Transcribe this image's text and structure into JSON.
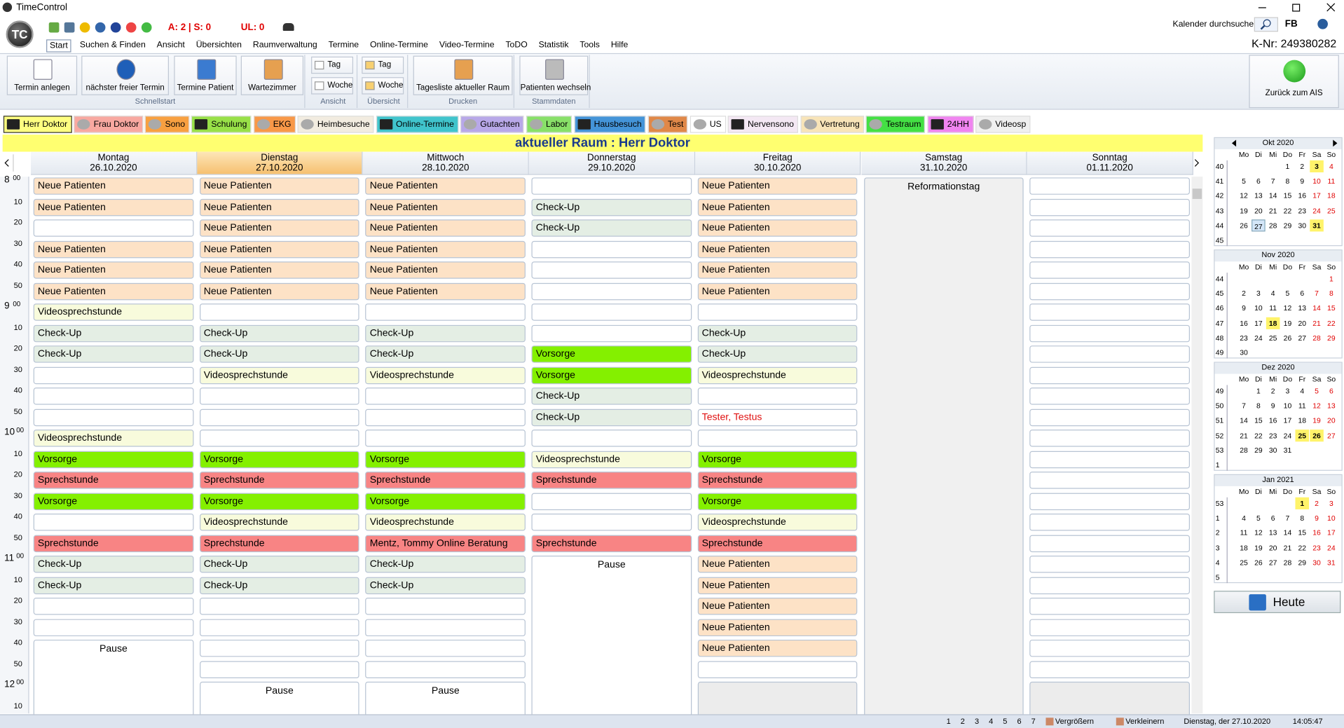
{
  "window": {
    "title": "TimeControl",
    "logo": "TC"
  },
  "toolbar": {
    "status_a": "A: 2 | S: 0",
    "status_ul": "UL: 0",
    "search": "Kalender durchsuchen",
    "fb": "FB"
  },
  "menu": {
    "items": [
      "Start",
      "Suchen & Finden",
      "Ansicht",
      "Übersichten",
      "Raumverwaltung",
      "Termine",
      "Online-Termine",
      "Video-Termine",
      "ToDO",
      "Statistik",
      "Tools",
      "Hilfe"
    ],
    "active": 0,
    "customer_number": "K-Nr: 249380282"
  },
  "ribbon": {
    "groups": [
      {
        "label": "Schnellstart",
        "buttons": [
          "Termin anlegen",
          "nächster freier Termin",
          "Termine Patient",
          "Wartezimmer"
        ]
      },
      {
        "label": "Ansicht",
        "buttons": [
          "Tag",
          "Woche"
        ]
      },
      {
        "label": "Übersicht",
        "buttons": [
          "Tag",
          "Woche"
        ]
      },
      {
        "label": "Drucken",
        "buttons": [
          "Tagesliste aktueller Raum"
        ]
      },
      {
        "label": "Stammdaten",
        "buttons": [
          "Patienten wechseln"
        ]
      }
    ],
    "back_button": "Zurück zum AIS"
  },
  "rooms": {
    "tabs": [
      {
        "name": "Herr Doktor",
        "color": "#ffff80"
      },
      {
        "name": "Frau Doktor",
        "color": "#f8a8a0"
      },
      {
        "name": "Sono",
        "color": "#f8a040"
      },
      {
        "name": "Schulung",
        "color": "#98e048"
      },
      {
        "name": "EKG",
        "color": "#f89848"
      },
      {
        "name": "Heimbesuche",
        "color": "#f2ece0"
      },
      {
        "name": "Online-Termine",
        "color": "#40c4cc"
      },
      {
        "name": "Gutachten",
        "color": "#b8a8e8"
      },
      {
        "name": "Labor",
        "color": "#88e068"
      },
      {
        "name": "Hausbesuch",
        "color": "#4494d8"
      },
      {
        "name": "Test",
        "color": "#e08848"
      },
      {
        "name": "US",
        "color": "#ffffff"
      },
      {
        "name": "Nervensono",
        "color": "#f4e8f4"
      },
      {
        "name": "Vertretung",
        "color": "#f8e4b8"
      },
      {
        "name": "Testraum",
        "color": "#44e044"
      },
      {
        "name": "24HH",
        "color": "#f084f0"
      },
      {
        "name": "Videosp",
        "color": "#f0f0f0"
      }
    ],
    "active": 0,
    "banner": "aktueller Raum : Herr Doktor"
  },
  "schedule": {
    "slot_colors": {
      "Neue Patienten": "#fde2c6",
      "Check-Up": "#e4eee4",
      "Videosprechstunde": "#f8fbdc",
      "Vorsorge": "#84f000",
      "Sprechstunde": "#f88484"
    },
    "times": [
      {
        "hour": "8",
        "minute": "00"
      },
      {
        "minute": "10"
      },
      {
        "minute": "20"
      },
      {
        "minute": "30"
      },
      {
        "minute": "40"
      },
      {
        "minute": "50"
      },
      {
        "hour": "9",
        "minute": "00"
      },
      {
        "minute": "10"
      },
      {
        "minute": "20"
      },
      {
        "minute": "30"
      },
      {
        "minute": "40"
      },
      {
        "minute": "50"
      },
      {
        "hour": "10",
        "minute": "00"
      },
      {
        "minute": "10"
      },
      {
        "minute": "20"
      },
      {
        "minute": "30"
      },
      {
        "minute": "40"
      },
      {
        "minute": "50"
      },
      {
        "hour": "11",
        "minute": "00"
      },
      {
        "minute": "10"
      },
      {
        "minute": "20"
      },
      {
        "minute": "30"
      },
      {
        "minute": "40"
      },
      {
        "minute": "50"
      },
      {
        "hour": "12",
        "minute": "00"
      },
      {
        "minute": "10"
      }
    ],
    "days": [
      {
        "name": "Montag",
        "date": "26.10.2020",
        "slots": [
          "Neue Patienten",
          "Neue Patienten",
          null,
          "Neue Patienten",
          "Neue Patienten",
          "Neue Patienten",
          "Videosprechstunde",
          "Check-Up",
          "Check-Up",
          null,
          null,
          null,
          "Videosprechstunde",
          "Vorsorge",
          "Sprechstunde",
          "Vorsorge",
          null,
          "Sprechstunde",
          "Check-Up",
          "Check-Up",
          null,
          null,
          {
            "text": "Pause",
            "block": true
          }
        ]
      },
      {
        "name": "Dienstag",
        "date": "27.10.2020",
        "today": true,
        "slots": [
          "Neue Patienten",
          "Neue Patienten",
          "Neue Patienten",
          "Neue Patienten",
          "Neue Patienten",
          "Neue Patienten",
          null,
          "Check-Up",
          "Check-Up",
          "Videosprechstunde",
          null,
          null,
          null,
          "Vorsorge",
          "Sprechstunde",
          "Vorsorge",
          "Videosprechstunde",
          "Sprechstunde",
          "Check-Up",
          "Check-Up",
          null,
          null,
          null,
          null,
          {
            "text": "Pause",
            "block": true
          }
        ]
      },
      {
        "name": "Mittwoch",
        "date": "28.10.2020",
        "slots": [
          "Neue Patienten",
          "Neue Patienten",
          "Neue Patienten",
          "Neue Patienten",
          "Neue Patienten",
          "Neue Patienten",
          null,
          "Check-Up",
          "Check-Up",
          "Videosprechstunde",
          null,
          null,
          null,
          "Vorsorge",
          "Sprechstunde",
          "Vorsorge",
          "Videosprechstunde",
          {
            "text": "Mentz, Tommy Online  Beratung",
            "color": "#f88484"
          },
          "Check-Up",
          "Check-Up",
          null,
          null,
          null,
          null,
          {
            "text": "Pause",
            "block": true
          }
        ]
      },
      {
        "name": "Donnerstag",
        "date": "29.10.2020",
        "slots": [
          null,
          "Check-Up",
          "Check-Up",
          null,
          null,
          null,
          null,
          null,
          "Vorsorge",
          "Vorsorge",
          "Check-Up",
          "Check-Up",
          null,
          "Videosprechstunde",
          "Sprechstunde",
          null,
          null,
          "Sprechstunde",
          {
            "text": "Pause",
            "block": true
          }
        ]
      },
      {
        "name": "Freitag",
        "date": "30.10.2020",
        "slots": [
          "Neue Patienten",
          "Neue Patienten",
          "Neue Patienten",
          "Neue Patienten",
          "Neue Patienten",
          "Neue Patienten",
          null,
          "Check-Up",
          "Check-Up",
          "Videosprechstunde",
          null,
          {
            "text": "Tester, Testus",
            "text_color": "#e01010"
          },
          null,
          "Vorsorge",
          "Sprechstunde",
          "Vorsorge",
          "Videosprechstunde",
          "Sprechstunde",
          "Neue Patienten",
          "Neue Patienten",
          "Neue Patienten",
          "Neue Patienten",
          "Neue Patienten",
          null,
          {
            "block": true,
            "color": "#ececec"
          }
        ]
      },
      {
        "name": "Samstag",
        "date": "31.10.2020",
        "slots": [
          {
            "text": "Reformationstag",
            "block": true,
            "color": "#f0f0f0"
          }
        ]
      },
      {
        "name": "Sonntag",
        "date": "01.11.2020",
        "slots": [
          null,
          null,
          null,
          null,
          null,
          null,
          null,
          null,
          null,
          null,
          null,
          null,
          null,
          null,
          null,
          null,
          null,
          null,
          null,
          null,
          null,
          null,
          null,
          null,
          {
            "block": true,
            "color": "#ececec"
          }
        ]
      }
    ]
  },
  "mini_calendar": {
    "weekdays": [
      "Mo",
      "Di",
      "Mi",
      "Do",
      "Fr",
      "Sa",
      "So"
    ],
    "months": [
      {
        "title": "Okt 2020",
        "highlight": [
          3,
          31
        ],
        "selected": [
          27
        ],
        "weeks": [
          {
            "week": 40,
            "days": [
              null,
              null,
              null,
              1,
              2,
              3,
              4
            ]
          },
          {
            "week": 41,
            "days": [
              5,
              6,
              7,
              8,
              9,
              10,
              11
            ]
          },
          {
            "week": 42,
            "days": [
              12,
              13,
              14,
              15,
              16,
              17,
              18
            ]
          },
          {
            "week": 43,
            "days": [
              19,
              20,
              21,
              22,
              23,
              24,
              25
            ]
          },
          {
            "week": 44,
            "days": [
              26,
              27,
              28,
              29,
              30,
              31,
              null
            ]
          },
          {
            "week": 45,
            "days": [
              null,
              null,
              null,
              null,
              null,
              null,
              null
            ]
          }
        ]
      },
      {
        "title": "Nov 2020",
        "highlight": [
          18
        ],
        "selected": [],
        "weeks": [
          {
            "week": 44,
            "days": [
              null,
              null,
              null,
              null,
              null,
              null,
              1
            ]
          },
          {
            "week": 45,
            "days": [
              2,
              3,
              4,
              5,
              6,
              7,
              8
            ]
          },
          {
            "week": 46,
            "days": [
              9,
              10,
              11,
              12,
              13,
              14,
              15
            ]
          },
          {
            "week": 47,
            "days": [
              16,
              17,
              18,
              19,
              20,
              21,
              22
            ]
          },
          {
            "week": 48,
            "days": [
              23,
              24,
              25,
              26,
              27,
              28,
              29
            ]
          },
          {
            "week": 49,
            "days": [
              30,
              null,
              null,
              null,
              null,
              null,
              null
            ]
          }
        ]
      },
      {
        "title": "Dez 2020",
        "highlight": [
          25,
          26
        ],
        "selected": [],
        "weeks": [
          {
            "week": 49,
            "days": [
              null,
              1,
              2,
              3,
              4,
              5,
              6
            ]
          },
          {
            "week": 50,
            "days": [
              7,
              8,
              9,
              10,
              11,
              12,
              13
            ]
          },
          {
            "week": 51,
            "days": [
              14,
              15,
              16,
              17,
              18,
              19,
              20
            ]
          },
          {
            "week": 52,
            "days": [
              21,
              22,
              23,
              24,
              25,
              26,
              27
            ]
          },
          {
            "week": 53,
            "days": [
              28,
              29,
              30,
              31,
              null,
              null,
              null
            ]
          },
          {
            "week": 1,
            "days": [
              null,
              null,
              null,
              null,
              null,
              null,
              null
            ]
          }
        ]
      },
      {
        "title": "Jan 2021",
        "highlight": [
          1
        ],
        "selected": [],
        "weeks": [
          {
            "week": 53,
            "days": [
              null,
              null,
              null,
              null,
              1,
              2,
              3
            ]
          },
          {
            "week": 1,
            "days": [
              4,
              5,
              6,
              7,
              8,
              9,
              10
            ]
          },
          {
            "week": 2,
            "days": [
              11,
              12,
              13,
              14,
              15,
              16,
              17
            ]
          },
          {
            "week": 3,
            "days": [
              18,
              19,
              20,
              21,
              22,
              23,
              24
            ]
          },
          {
            "week": 4,
            "days": [
              25,
              26,
              27,
              28,
              29,
              30,
              31
            ]
          },
          {
            "week": 5,
            "days": [
              null,
              null,
              null,
              null,
              null,
              null,
              null
            ]
          }
        ]
      }
    ],
    "today_button": "Heute"
  },
  "status_bar": {
    "pages": [
      "1",
      "2",
      "3",
      "4",
      "5",
      "6",
      "7"
    ],
    "zoom_in": "Vergrößern",
    "zoom_out": "Verkleinern",
    "date": "Dienstag, der 27.10.2020",
    "time": "14:05:47"
  }
}
